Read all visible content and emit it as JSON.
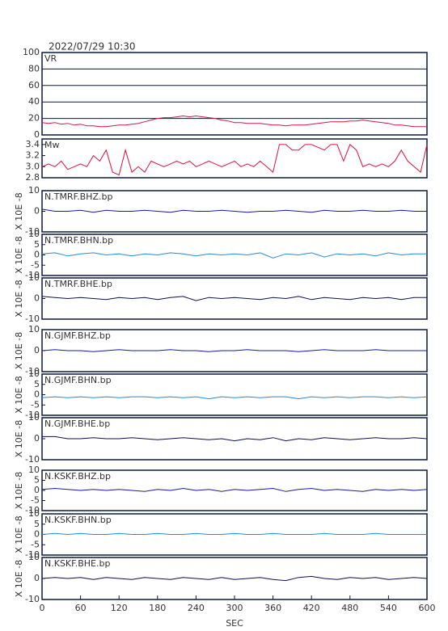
{
  "chart_data": [
    {
      "type": "line",
      "title": "2022/07/29 10:30",
      "x": [
        0,
        10,
        20,
        30,
        40,
        50,
        60,
        70,
        80,
        90,
        100,
        110,
        120,
        130,
        140,
        150,
        160,
        170,
        180,
        190,
        200,
        210,
        220,
        230,
        240,
        250,
        260,
        270,
        280,
        290,
        300,
        310,
        320,
        330,
        340,
        350,
        360,
        370,
        380,
        390,
        400,
        410,
        420,
        430,
        440,
        450,
        460,
        470,
        480,
        490,
        500,
        510,
        520,
        530,
        540,
        550,
        560,
        570,
        580,
        590,
        600
      ],
      "series": [
        {
          "name": "VR",
          "color": "#d01848",
          "values": [
            15,
            14,
            15,
            13,
            14,
            12,
            13,
            11,
            11,
            10,
            10,
            11,
            12,
            12,
            13,
            14,
            16,
            18,
            20,
            21,
            21,
            22,
            23,
            22,
            23,
            22,
            21,
            20,
            18,
            17,
            15,
            15,
            14,
            14,
            14,
            13,
            12,
            12,
            11,
            12,
            12,
            12,
            13,
            14,
            15,
            16,
            16,
            16,
            17,
            17,
            18,
            17,
            16,
            15,
            14,
            12,
            12,
            11,
            10,
            10,
            10
          ]
        }
      ],
      "xlim": [
        0,
        600
      ],
      "ylim": [
        0,
        100
      ],
      "yticks": [
        0,
        20,
        40,
        60,
        80,
        100
      ],
      "grid": true
    },
    {
      "type": "line",
      "x": [
        0,
        10,
        20,
        30,
        40,
        50,
        60,
        70,
        80,
        90,
        100,
        110,
        120,
        130,
        140,
        150,
        160,
        170,
        180,
        190,
        200,
        210,
        220,
        230,
        240,
        250,
        260,
        270,
        280,
        290,
        300,
        310,
        320,
        330,
        340,
        350,
        360,
        370,
        380,
        390,
        400,
        410,
        420,
        430,
        440,
        450,
        460,
        470,
        480,
        490,
        500,
        510,
        520,
        530,
        540,
        550,
        560,
        570,
        580,
        590,
        600
      ],
      "series": [
        {
          "name": "Mw",
          "color": "#e0103a",
          "values": [
            3.0,
            3.05,
            3.0,
            3.1,
            2.95,
            3.0,
            3.05,
            3.0,
            3.2,
            3.1,
            3.3,
            2.9,
            2.85,
            3.3,
            2.9,
            3.0,
            2.9,
            3.1,
            3.05,
            3.0,
            3.05,
            3.1,
            3.05,
            3.1,
            3.0,
            3.05,
            3.1,
            3.05,
            3.0,
            3.05,
            3.1,
            3.0,
            3.05,
            3.0,
            3.1,
            3.0,
            2.9,
            3.4,
            3.4,
            3.3,
            3.3,
            3.4,
            3.4,
            3.35,
            3.3,
            3.4,
            3.4,
            3.1,
            3.4,
            3.3,
            3.0,
            3.05,
            3.0,
            3.05,
            3.0,
            3.1,
            3.3,
            3.1,
            3.0,
            2.9,
            3.4
          ]
        }
      ],
      "xlim": [
        0,
        600
      ],
      "ylim": [
        2.8,
        3.5
      ],
      "yticks": [
        2.8,
        {
          "value": 3,
          "label": "3.0"
        },
        3.2,
        3.4
      ]
    },
    {
      "type": "line",
      "ylabel": "X 10E -8",
      "x": [
        0,
        20,
        40,
        60,
        80,
        100,
        120,
        140,
        160,
        180,
        200,
        220,
        240,
        260,
        280,
        300,
        320,
        340,
        360,
        380,
        400,
        420,
        440,
        460,
        480,
        500,
        520,
        540,
        560,
        580,
        600
      ],
      "series": [
        {
          "name": "N.TMRF.BHZ.bp",
          "color": "#1a1aa0",
          "values": [
            1,
            0,
            0,
            0.5,
            -0.5,
            0.5,
            0,
            0,
            0.5,
            0,
            -0.5,
            0.5,
            0,
            0,
            0.5,
            0,
            -0.5,
            0,
            0,
            0.5,
            0,
            -0.5,
            0.5,
            0,
            0,
            0.5,
            0,
            0,
            0.5,
            0,
            0
          ]
        }
      ],
      "xlim": [
        0,
        600
      ],
      "ylim": [
        -10,
        10
      ],
      "yticks": [
        10,
        0,
        -10
      ]
    },
    {
      "type": "line",
      "ylabel": "X 10E -8",
      "x": [
        0,
        20,
        40,
        60,
        80,
        100,
        120,
        140,
        160,
        180,
        200,
        220,
        240,
        260,
        280,
        300,
        320,
        340,
        360,
        380,
        400,
        420,
        440,
        460,
        480,
        500,
        520,
        540,
        560,
        580,
        600
      ],
      "series": [
        {
          "name": "N.TMRF.BHN.bp",
          "color": "#2a8ad0",
          "values": [
            0.5,
            1,
            -0.5,
            0.5,
            1,
            0,
            0.5,
            -0.5,
            0.5,
            0,
            1,
            0.5,
            -0.5,
            0.5,
            0,
            0.5,
            0,
            1,
            -1.5,
            0.5,
            0,
            1,
            -1,
            0.5,
            0,
            0.5,
            -0.5,
            1,
            0,
            0.5,
            0.5
          ]
        }
      ],
      "xlim": [
        0,
        600
      ],
      "ylim": [
        -10,
        10
      ],
      "yticks": [
        10,
        5,
        0,
        -5,
        -10
      ]
    },
    {
      "type": "line",
      "ylabel": "X 10E -8",
      "x": [
        0,
        20,
        40,
        60,
        80,
        100,
        120,
        140,
        160,
        180,
        200,
        220,
        240,
        260,
        280,
        300,
        320,
        340,
        360,
        380,
        400,
        420,
        440,
        460,
        480,
        500,
        520,
        540,
        560,
        580,
        600
      ],
      "series": [
        {
          "name": "N.TMRF.BHE.bp",
          "color": "#101050",
          "values": [
            1,
            0.5,
            0,
            0.5,
            0,
            -0.5,
            0.5,
            0,
            0.5,
            -0.5,
            0.5,
            1,
            -1,
            0.5,
            0,
            0.5,
            0,
            -0.5,
            0.5,
            0,
            1,
            -0.5,
            0.5,
            0,
            -0.5,
            0.5,
            0,
            0.5,
            -0.5,
            0.5,
            0.5
          ]
        }
      ],
      "xlim": [
        0,
        600
      ],
      "ylim": [
        -10,
        10
      ],
      "yticks": [
        10,
        0,
        -10
      ]
    },
    {
      "type": "line",
      "ylabel": "X 10E -8",
      "x": [
        0,
        20,
        40,
        60,
        80,
        100,
        120,
        140,
        160,
        180,
        200,
        220,
        240,
        260,
        280,
        300,
        320,
        340,
        360,
        380,
        400,
        420,
        440,
        460,
        480,
        500,
        520,
        540,
        560,
        580,
        600
      ],
      "series": [
        {
          "name": "N.GJMF.BHZ.bp",
          "color": "#1a1aa0",
          "values": [
            0,
            0.5,
            0,
            0,
            -0.5,
            0,
            0.5,
            0,
            0,
            0,
            0.5,
            0,
            0,
            -0.5,
            0,
            0,
            0.5,
            0,
            0,
            0,
            -0.5,
            0,
            0.5,
            0,
            0,
            0,
            0.5,
            0,
            0,
            0,
            0
          ]
        }
      ],
      "xlim": [
        0,
        600
      ],
      "ylim": [
        -10,
        10
      ],
      "yticks": [
        10,
        0,
        -10
      ]
    },
    {
      "type": "line",
      "ylabel": "X 10E -8",
      "x": [
        0,
        20,
        40,
        60,
        80,
        100,
        120,
        140,
        160,
        180,
        200,
        220,
        240,
        260,
        280,
        300,
        320,
        340,
        360,
        380,
        400,
        420,
        440,
        460,
        480,
        500,
        520,
        540,
        560,
        580,
        600
      ],
      "series": [
        {
          "name": "N.GJMF.BHN.bp",
          "color": "#2a8ad0",
          "values": [
            -1.5,
            -1,
            -1.5,
            -1,
            -1.5,
            -1,
            -1.5,
            -1,
            -1,
            -1.5,
            -1,
            -1.5,
            -1,
            -2,
            -1,
            -1.5,
            -1,
            -1.5,
            -1,
            -1,
            -2,
            -1,
            -1.5,
            -1,
            -1.5,
            -1,
            -1,
            -1.5,
            -1,
            -1.5,
            -1
          ]
        }
      ],
      "xlim": [
        0,
        600
      ],
      "ylim": [
        -10,
        10
      ],
      "yticks": [
        10,
        5,
        0,
        -5,
        -10
      ]
    },
    {
      "type": "line",
      "ylabel": "X 10E -8",
      "x": [
        0,
        20,
        40,
        60,
        80,
        100,
        120,
        140,
        160,
        180,
        200,
        220,
        240,
        260,
        280,
        300,
        320,
        340,
        360,
        380,
        400,
        420,
        440,
        460,
        480,
        500,
        520,
        540,
        560,
        580,
        600
      ],
      "series": [
        {
          "name": "N.GJMF.BHE.bp",
          "color": "#101050",
          "values": [
            1,
            1,
            0,
            0,
            0.5,
            0,
            0,
            0.5,
            0,
            -0.5,
            0,
            0.5,
            0,
            -0.5,
            0,
            -1,
            0,
            -0.5,
            0.5,
            -1,
            0,
            -0.5,
            0.5,
            0,
            -0.5,
            0,
            0.5,
            0,
            0,
            0.5,
            0
          ]
        }
      ],
      "xlim": [
        0,
        600
      ],
      "ylim": [
        -10,
        10
      ],
      "yticks": [
        10,
        0,
        -10
      ]
    },
    {
      "type": "line",
      "ylabel": "X 10E -8",
      "x": [
        0,
        20,
        40,
        60,
        80,
        100,
        120,
        140,
        160,
        180,
        200,
        220,
        240,
        260,
        280,
        300,
        320,
        340,
        360,
        380,
        400,
        420,
        440,
        460,
        480,
        500,
        520,
        540,
        560,
        580,
        600
      ],
      "series": [
        {
          "name": "N.KSKF.BHZ.bp",
          "color": "#1a1aa0",
          "values": [
            0.5,
            1,
            0.5,
            0,
            0.5,
            0,
            0.5,
            0,
            -0.5,
            0.5,
            0,
            1,
            0,
            0.5,
            -0.5,
            0.5,
            0,
            0.5,
            1,
            -0.5,
            0.5,
            1,
            0,
            0.5,
            0,
            -0.5,
            0.5,
            0,
            0.5,
            0,
            0.5
          ]
        }
      ],
      "xlim": [
        0,
        600
      ],
      "ylim": [
        -10,
        10
      ],
      "yticks": [
        10,
        5,
        0,
        -5,
        -10
      ]
    },
    {
      "type": "line",
      "ylabel": "X 10E -8",
      "x": [
        0,
        20,
        40,
        60,
        80,
        100,
        120,
        140,
        160,
        180,
        200,
        220,
        240,
        260,
        280,
        300,
        320,
        340,
        360,
        380,
        400,
        420,
        440,
        460,
        480,
        500,
        520,
        540,
        560,
        580,
        600
      ],
      "series": [
        {
          "name": "N.KSKF.BHN.bp",
          "color": "#2a8ad0",
          "values": [
            0,
            0.5,
            0,
            0.5,
            0,
            0,
            0.5,
            0,
            0,
            0.5,
            0,
            0,
            0.5,
            0,
            0,
            0.5,
            0,
            0,
            0.5,
            0,
            0,
            0,
            0.5,
            0,
            0,
            0,
            0.5,
            0,
            0,
            0,
            0
          ]
        }
      ],
      "xlim": [
        0,
        600
      ],
      "ylim": [
        -10,
        10
      ],
      "yticks": [
        10,
        5,
        0,
        -5,
        -10
      ]
    },
    {
      "type": "line",
      "ylabel": "X 10E -8",
      "xlabel": "SEC",
      "x": [
        0,
        20,
        40,
        60,
        80,
        100,
        120,
        140,
        160,
        180,
        200,
        220,
        240,
        260,
        280,
        300,
        320,
        340,
        360,
        380,
        400,
        420,
        440,
        460,
        480,
        500,
        520,
        540,
        560,
        580,
        600
      ],
      "series": [
        {
          "name": "N.KSKF.BHE.bp",
          "color": "#101050",
          "values": [
            0,
            0.5,
            0,
            0.5,
            -0.5,
            0.5,
            0,
            -0.5,
            0.5,
            0,
            -0.5,
            0.5,
            0,
            -0.5,
            0.5,
            -0.5,
            0,
            0.5,
            -0.5,
            -1,
            0.5,
            1,
            0,
            -0.5,
            0.5,
            0,
            0.5,
            -0.5,
            0,
            0.5,
            0
          ]
        }
      ],
      "xlim": [
        0,
        600
      ],
      "ylim": [
        -10,
        10
      ],
      "yticks": [
        10,
        0,
        -10
      ],
      "xticks": [
        0,
        60,
        120,
        180,
        240,
        300,
        360,
        420,
        480,
        540,
        600
      ]
    }
  ]
}
